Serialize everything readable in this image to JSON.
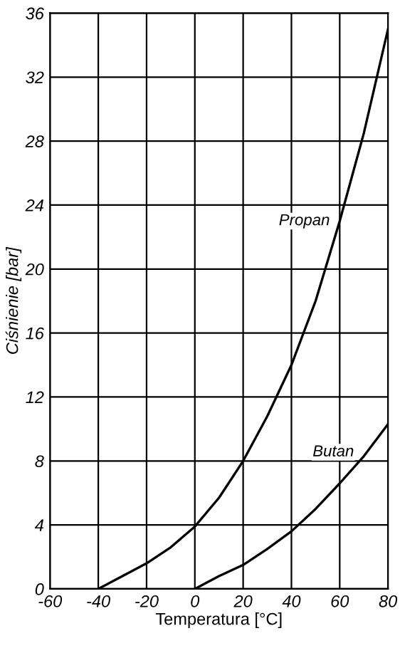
{
  "chart_data": {
    "type": "line",
    "xlabel": "Temperatura [°C]",
    "ylabel": "Ciśnienie [bar]",
    "series": [
      {
        "name": "Propan",
        "color": "#000000",
        "x": [
          -40,
          -30,
          -20,
          -10,
          0,
          10,
          20,
          30,
          40,
          50,
          60,
          70,
          80
        ],
        "values": [
          0,
          0.8,
          1.6,
          2.6,
          3.9,
          5.7,
          8,
          10.8,
          14,
          18,
          23,
          28.5,
          35
        ]
      },
      {
        "name": "Butan",
        "color": "#000000",
        "x": [
          0,
          10,
          20,
          30,
          40,
          50,
          60,
          70,
          80
        ],
        "values": [
          0,
          0.8,
          1.5,
          2.5,
          3.6,
          5,
          6.6,
          8.3,
          10.3
        ]
      }
    ],
    "xlim": [
      -60,
      80
    ],
    "xticks": [
      -60,
      -40,
      -20,
      0,
      20,
      40,
      60,
      80
    ],
    "ylim": [
      0,
      36
    ],
    "yticks": [
      0,
      4,
      8,
      12,
      16,
      20,
      24,
      28,
      32,
      36
    ],
    "grid": true,
    "legend": false,
    "marker": "none",
    "line_style": "solid"
  }
}
